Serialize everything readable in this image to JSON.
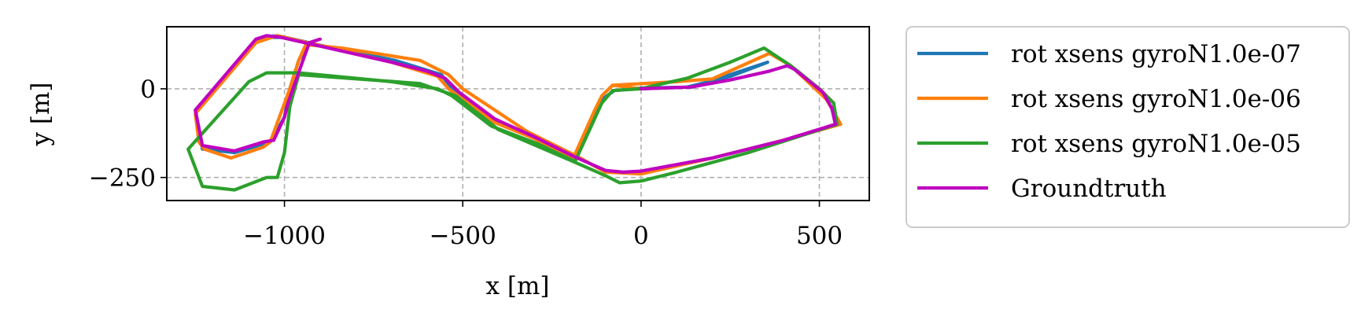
{
  "chart_data": {
    "type": "line",
    "title": "",
    "xlabel": "x [m]",
    "ylabel": "y [m]",
    "xlim": [
      -1330,
      640
    ],
    "ylim": [
      -315,
      175
    ],
    "xticks": [
      -1000,
      -500,
      0,
      500
    ],
    "xtick_labels": [
      "−1000",
      "−500",
      "0",
      "500"
    ],
    "yticks": [
      0,
      -250
    ],
    "ytick_labels": [
      "0",
      "−250"
    ],
    "grid": true,
    "grid_style": "dashed",
    "legend_position": "outside-right",
    "series": [
      {
        "name": "rot xsens gyroN1.0e-07",
        "color": "#1f77b4",
        "points": [
          [
            0,
            0
          ],
          [
            130,
            5
          ],
          [
            250,
            35
          ],
          [
            355,
            75
          ],
          [
            145,
            5
          ],
          [
            0,
            2
          ],
          [
            -75,
            -5
          ],
          [
            -110,
            -30
          ],
          [
            -185,
            -190
          ],
          [
            -300,
            -140
          ],
          [
            -410,
            -90
          ],
          [
            -530,
            0
          ],
          [
            -560,
            40
          ],
          [
            -690,
            80
          ],
          [
            -1010,
            145
          ],
          [
            -1050,
            145
          ],
          [
            -1080,
            130
          ],
          [
            -1250,
            -60
          ],
          [
            -1230,
            -170
          ],
          [
            -1140,
            -180
          ],
          [
            -1040,
            -150
          ],
          [
            -1000,
            -80
          ],
          [
            -985,
            0
          ],
          [
            -960,
            80
          ],
          [
            -930,
            130
          ],
          [
            -1020,
            150
          ],
          [
            -1060,
            145
          ]
        ]
      },
      {
        "name": "rot xsens gyroN1.0e-06",
        "color": "#ff7f0e",
        "points": [
          [
            0,
            0
          ],
          [
            -80,
            10
          ],
          [
            -110,
            -20
          ],
          [
            -130,
            -60
          ],
          [
            -190,
            -195
          ],
          [
            -300,
            -140
          ],
          [
            -410,
            -95
          ],
          [
            -540,
            0
          ],
          [
            -570,
            35
          ],
          [
            -700,
            75
          ],
          [
            -1020,
            150
          ],
          [
            -1080,
            130
          ],
          [
            -1250,
            -70
          ],
          [
            -1240,
            -150
          ],
          [
            -1225,
            -170
          ],
          [
            -1150,
            -195
          ],
          [
            -1060,
            -165
          ],
          [
            -1040,
            -150
          ],
          [
            -985,
            0
          ],
          [
            -960,
            80
          ],
          [
            -940,
            125
          ],
          [
            -840,
            115
          ],
          [
            -620,
            80
          ],
          [
            -540,
            40
          ],
          [
            -500,
            0
          ],
          [
            -320,
            -120
          ],
          [
            -180,
            -190
          ],
          [
            -100,
            -235
          ],
          [
            0,
            -240
          ],
          [
            200,
            -195
          ],
          [
            400,
            -145
          ],
          [
            560,
            -100
          ],
          [
            520,
            -30
          ],
          [
            420,
            65
          ],
          [
            360,
            100
          ],
          [
            200,
            28
          ],
          [
            100,
            20
          ],
          [
            -80,
            10
          ]
        ]
      },
      {
        "name": "rot xsens gyroN1.0e-05",
        "color": "#2ca02c",
        "points": [
          [
            0,
            0
          ],
          [
            -80,
            -5
          ],
          [
            -110,
            -40
          ],
          [
            -185,
            -205
          ],
          [
            -290,
            -155
          ],
          [
            -420,
            -105
          ],
          [
            -530,
            -20
          ],
          [
            -570,
            0
          ],
          [
            -700,
            20
          ],
          [
            -960,
            45
          ],
          [
            -1050,
            45
          ],
          [
            -1100,
            20
          ],
          [
            -1270,
            -170
          ],
          [
            -1230,
            -275
          ],
          [
            -1140,
            -285
          ],
          [
            -1050,
            -250
          ],
          [
            -1020,
            -250
          ],
          [
            -1000,
            -180
          ],
          [
            -985,
            -50
          ],
          [
            -960,
            40
          ],
          [
            -620,
            15
          ],
          [
            -520,
            -20
          ],
          [
            -400,
            -115
          ],
          [
            -190,
            -205
          ],
          [
            -100,
            -245
          ],
          [
            -60,
            -265
          ],
          [
            0,
            -260
          ],
          [
            100,
            -235
          ],
          [
            300,
            -180
          ],
          [
            550,
            -100
          ],
          [
            540,
            -40
          ],
          [
            500,
            0
          ],
          [
            420,
            65
          ],
          [
            345,
            115
          ],
          [
            250,
            75
          ],
          [
            130,
            30
          ],
          [
            40,
            10
          ],
          [
            0,
            0
          ]
        ]
      },
      {
        "name": "Groundtruth",
        "color": "#bf00bf",
        "points": [
          [
            0,
            0
          ],
          [
            140,
            5
          ],
          [
            250,
            25
          ],
          [
            360,
            50
          ],
          [
            410,
            65
          ],
          [
            430,
            55
          ],
          [
            510,
            -10
          ],
          [
            535,
            -55
          ],
          [
            545,
            -100
          ],
          [
            400,
            -145
          ],
          [
            200,
            -195
          ],
          [
            0,
            -232
          ],
          [
            -50,
            -235
          ],
          [
            -100,
            -230
          ],
          [
            -190,
            -190
          ],
          [
            -300,
            -135
          ],
          [
            -410,
            -85
          ],
          [
            -510,
            -10
          ],
          [
            -550,
            30
          ],
          [
            -600,
            50
          ],
          [
            -700,
            75
          ],
          [
            -1010,
            145
          ],
          [
            -1050,
            150
          ],
          [
            -1080,
            140
          ],
          [
            -1250,
            -60
          ],
          [
            -1230,
            -160
          ],
          [
            -1140,
            -175
          ],
          [
            -1060,
            -150
          ],
          [
            -1030,
            -145
          ],
          [
            -1000,
            -80
          ],
          [
            -990,
            -40
          ],
          [
            -950,
            75
          ],
          [
            -930,
            130
          ],
          [
            -900,
            140
          ]
        ]
      }
    ]
  }
}
